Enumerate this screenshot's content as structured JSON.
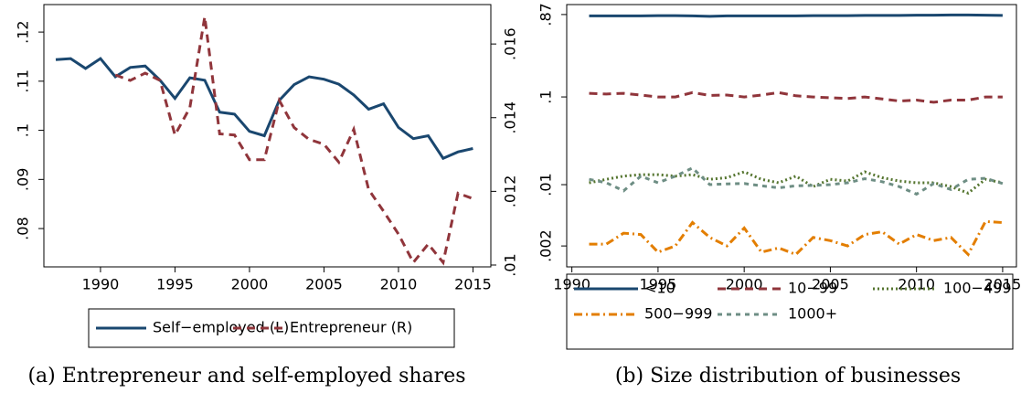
{
  "chart_data": [
    {
      "type": "line",
      "caption": "(a) Entrepreneur and self-employed shares",
      "x": [
        1987,
        1988,
        1989,
        1990,
        1991,
        1992,
        1993,
        1994,
        1995,
        1996,
        1997,
        1998,
        1999,
        2000,
        2001,
        2002,
        2003,
        2004,
        2005,
        2006,
        2007,
        2008,
        2009,
        2010,
        2011,
        2012,
        2013,
        2014,
        2015
      ],
      "xlim": [
        1986.2,
        2016.2
      ],
      "xticks": [
        1990,
        1995,
        2000,
        2005,
        2010,
        2015
      ],
      "ylim": [
        0.0722,
        0.1256
      ],
      "yticks": [
        {
          "value": 0.08,
          "label": ".08"
        },
        {
          "value": 0.09,
          "label": ".09"
        },
        {
          "value": 0.1,
          "label": ".1"
        },
        {
          "value": 0.11,
          "label": ".11"
        },
        {
          "value": 0.12,
          "label": ".12"
        }
      ],
      "y2lim": [
        0.00995,
        0.01707
      ],
      "y2ticks": [
        {
          "value": 0.01,
          "label": ".01"
        },
        {
          "value": 0.012,
          "label": ".012"
        },
        {
          "value": 0.014,
          "label": ".014"
        },
        {
          "value": 0.016,
          "label": ".016"
        }
      ],
      "series": [
        {
          "name": "Self−employed (L)",
          "color": "#1a476f",
          "style": "solid",
          "values": [
            0.1144,
            0.1146,
            0.1126,
            0.1146,
            0.1109,
            0.1128,
            0.1131,
            0.1102,
            0.1065,
            0.1107,
            0.1102,
            0.1037,
            0.1033,
            0.0998,
            0.0989,
            0.1061,
            0.1093,
            0.1109,
            0.1104,
            0.1094,
            0.1072,
            0.1043,
            0.1054,
            0.1006,
            0.0983,
            0.0989,
            0.0943,
            0.0956,
            0.0963
          ]
        },
        {
          "name": "Entrepreneur (R)",
          "color": "#90353b",
          "style": "dash",
          "axis": "y2",
          "values": [
            null,
            null,
            null,
            null,
            0.01516,
            0.01501,
            0.01521,
            0.01501,
            0.01353,
            0.01427,
            0.01674,
            0.01356,
            0.01353,
            0.01286,
            0.01286,
            0.01447,
            0.01373,
            0.01341,
            0.01328,
            0.01279,
            0.01368,
            0.01205,
            0.01146,
            0.01084,
            0.01007,
            0.01057,
            0.01007,
            0.01195,
            0.0118
          ]
        }
      ]
    },
    {
      "type": "line",
      "caption": "(b) Size distribution of businesses",
      "ylog": true,
      "x": [
        1991,
        1992,
        1993,
        1994,
        1995,
        1996,
        1997,
        1998,
        1999,
        2000,
        2001,
        2002,
        2003,
        2004,
        2005,
        2006,
        2007,
        2008,
        2009,
        2010,
        2011,
        2012,
        2013,
        2014,
        2015
      ],
      "xlim": [
        1989.7,
        2015.8
      ],
      "xticks": [
        1990,
        1995,
        2000,
        2005,
        2010,
        2015
      ],
      "ylim": [
        0.001155,
        1.13
      ],
      "yticks": [
        {
          "value": 0.002,
          "label": ".002"
        },
        {
          "value": 0.01,
          "label": ".01"
        },
        {
          "value": 0.1,
          "label": ".1"
        },
        {
          "value": 0.87,
          "label": ".87"
        }
      ],
      "series": [
        {
          "name": "<10",
          "color": "#1a476f",
          "style": "solid",
          "values": [
            0.84,
            0.84,
            0.84,
            0.84,
            0.845,
            0.845,
            0.84,
            0.83,
            0.84,
            0.84,
            0.84,
            0.84,
            0.84,
            0.845,
            0.845,
            0.845,
            0.85,
            0.85,
            0.85,
            0.855,
            0.855,
            0.86,
            0.86,
            0.855,
            0.85
          ]
        },
        {
          "name": "10−99",
          "color": "#90353b",
          "style": "dash",
          "values": [
            0.11,
            0.108,
            0.11,
            0.105,
            0.1,
            0.1,
            0.112,
            0.104,
            0.105,
            0.1,
            0.105,
            0.112,
            0.103,
            0.1,
            0.098,
            0.096,
            0.1,
            0.095,
            0.09,
            0.092,
            0.087,
            0.092,
            0.092,
            0.1,
            0.1
          ]
        },
        {
          "name": "100−499",
          "color": "#55752f",
          "style": "dot",
          "values": [
            0.0105,
            0.0115,
            0.0125,
            0.013,
            0.013,
            0.0125,
            0.013,
            0.0115,
            0.012,
            0.014,
            0.0115,
            0.0105,
            0.0125,
            0.0095,
            0.0115,
            0.011,
            0.014,
            0.012,
            0.011,
            0.0105,
            0.0105,
            0.0095,
            0.008,
            0.0115,
            0.0105
          ]
        },
        {
          "name": "500−999",
          "color": "#e37e00",
          "style": "dashdot",
          "values": [
            0.0021,
            0.0021,
            0.0028,
            0.0027,
            0.0017,
            0.002,
            0.0037,
            0.0025,
            0.002,
            0.0032,
            0.0017,
            0.0019,
            0.0016,
            0.0025,
            0.0023,
            0.002,
            0.0027,
            0.0029,
            0.0021,
            0.0027,
            0.0023,
            0.0025,
            0.0016,
            0.0038,
            0.0037
          ]
        },
        {
          "name": "1000+",
          "color": "#6e8e84",
          "style": "shortdash",
          "values": [
            0.0115,
            0.0105,
            0.0085,
            0.0125,
            0.0105,
            0.0125,
            0.0155,
            0.01,
            0.0102,
            0.0103,
            0.0097,
            0.0092,
            0.0097,
            0.0098,
            0.01,
            0.0105,
            0.0117,
            0.0108,
            0.0095,
            0.0078,
            0.0103,
            0.0088,
            0.0115,
            0.0118,
            0.0103
          ]
        }
      ]
    }
  ]
}
